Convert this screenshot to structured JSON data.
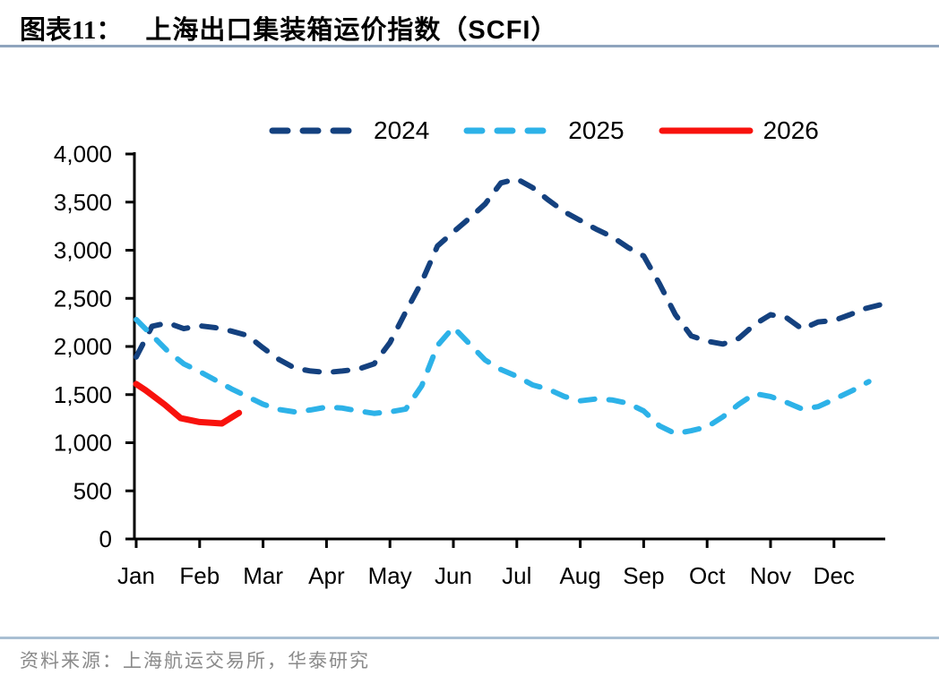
{
  "header": {
    "figure_label": "图表11：",
    "title": "上海出口集装箱运价指数（SCFI）"
  },
  "footer": {
    "source": "资料来源：上海航运交易所，华泰研究"
  },
  "chart_data": {
    "type": "line",
    "title": "上海出口集装箱运价指数（SCFI）",
    "xlabel": "",
    "ylabel": "",
    "x_unit": "month",
    "x_tick_labels": [
      "Jan",
      "Feb",
      "Mar",
      "Apr",
      "May",
      "Jun",
      "Jul",
      "Aug",
      "Sep",
      "Oct",
      "Nov",
      "Dec"
    ],
    "y_axis": {
      "min": 0,
      "max": 4000,
      "step": 500,
      "ticks": [
        0,
        500,
        1000,
        1500,
        2000,
        2500,
        3000,
        3500,
        4000
      ]
    },
    "grid": false,
    "legend_position": "top-center",
    "axis_color": "#000000",
    "series": [
      {
        "label": "2024",
        "color": "#14417f",
        "style": "dashed",
        "points": [
          [
            0,
            1890
          ],
          [
            0.25,
            2210
          ],
          [
            0.5,
            2245
          ],
          [
            0.75,
            2185
          ],
          [
            1,
            2215
          ],
          [
            1.25,
            2195
          ],
          [
            1.5,
            2160
          ],
          [
            1.75,
            2115
          ],
          [
            2,
            1985
          ],
          [
            2.25,
            1865
          ],
          [
            2.5,
            1775
          ],
          [
            2.75,
            1745
          ],
          [
            3,
            1730
          ],
          [
            3.25,
            1745
          ],
          [
            3.5,
            1765
          ],
          [
            3.75,
            1820
          ],
          [
            4,
            2040
          ],
          [
            4.25,
            2360
          ],
          [
            4.5,
            2670
          ],
          [
            4.75,
            3045
          ],
          [
            5,
            3190
          ],
          [
            5.25,
            3330
          ],
          [
            5.5,
            3480
          ],
          [
            5.75,
            3700
          ],
          [
            6,
            3740
          ],
          [
            6.25,
            3650
          ],
          [
            6.5,
            3520
          ],
          [
            6.75,
            3400
          ],
          [
            7,
            3310
          ],
          [
            7.25,
            3220
          ],
          [
            7.5,
            3140
          ],
          [
            7.75,
            3030
          ],
          [
            8,
            2940
          ],
          [
            8.25,
            2650
          ],
          [
            8.5,
            2330
          ],
          [
            8.75,
            2110
          ],
          [
            9,
            2055
          ],
          [
            9.25,
            2025
          ],
          [
            9.5,
            2085
          ],
          [
            9.75,
            2230
          ],
          [
            10,
            2330
          ],
          [
            10.25,
            2300
          ],
          [
            10.5,
            2180
          ],
          [
            10.75,
            2255
          ],
          [
            11,
            2270
          ],
          [
            11.25,
            2330
          ],
          [
            11.5,
            2395
          ],
          [
            11.8,
            2445
          ]
        ]
      },
      {
        "label": "2025",
        "color": "#2db2e8",
        "style": "dashed",
        "points": [
          [
            0,
            2280
          ],
          [
            0.25,
            2115
          ],
          [
            0.5,
            1950
          ],
          [
            0.75,
            1820
          ],
          [
            1,
            1740
          ],
          [
            1.25,
            1650
          ],
          [
            1.5,
            1560
          ],
          [
            1.75,
            1480
          ],
          [
            2,
            1400
          ],
          [
            2.25,
            1345
          ],
          [
            2.5,
            1320
          ],
          [
            2.75,
            1340
          ],
          [
            3,
            1370
          ],
          [
            3.25,
            1360
          ],
          [
            3.5,
            1330
          ],
          [
            3.75,
            1305
          ],
          [
            4,
            1320
          ],
          [
            4.25,
            1350
          ],
          [
            4.5,
            1590
          ],
          [
            4.75,
            2010
          ],
          [
            5,
            2200
          ],
          [
            5.25,
            2030
          ],
          [
            5.5,
            1860
          ],
          [
            5.75,
            1760
          ],
          [
            6,
            1690
          ],
          [
            6.25,
            1600
          ],
          [
            6.5,
            1555
          ],
          [
            6.75,
            1480
          ],
          [
            7,
            1435
          ],
          [
            7.25,
            1455
          ],
          [
            7.5,
            1445
          ],
          [
            7.75,
            1410
          ],
          [
            8,
            1330
          ],
          [
            8.25,
            1175
          ],
          [
            8.5,
            1095
          ],
          [
            8.75,
            1125
          ],
          [
            9,
            1165
          ],
          [
            9.25,
            1270
          ],
          [
            9.5,
            1400
          ],
          [
            9.75,
            1510
          ],
          [
            10,
            1480
          ],
          [
            10.25,
            1420
          ],
          [
            10.5,
            1350
          ],
          [
            10.75,
            1375
          ],
          [
            11,
            1450
          ],
          [
            11.3,
            1545
          ],
          [
            11.55,
            1635
          ]
        ]
      },
      {
        "label": "2026",
        "color": "#f8120d",
        "style": "solid",
        "points": [
          [
            0,
            1610
          ],
          [
            0.15,
            1545
          ],
          [
            0.45,
            1395
          ],
          [
            0.7,
            1255
          ],
          [
            1,
            1215
          ],
          [
            1.35,
            1200
          ],
          [
            1.62,
            1310
          ]
        ]
      }
    ]
  }
}
